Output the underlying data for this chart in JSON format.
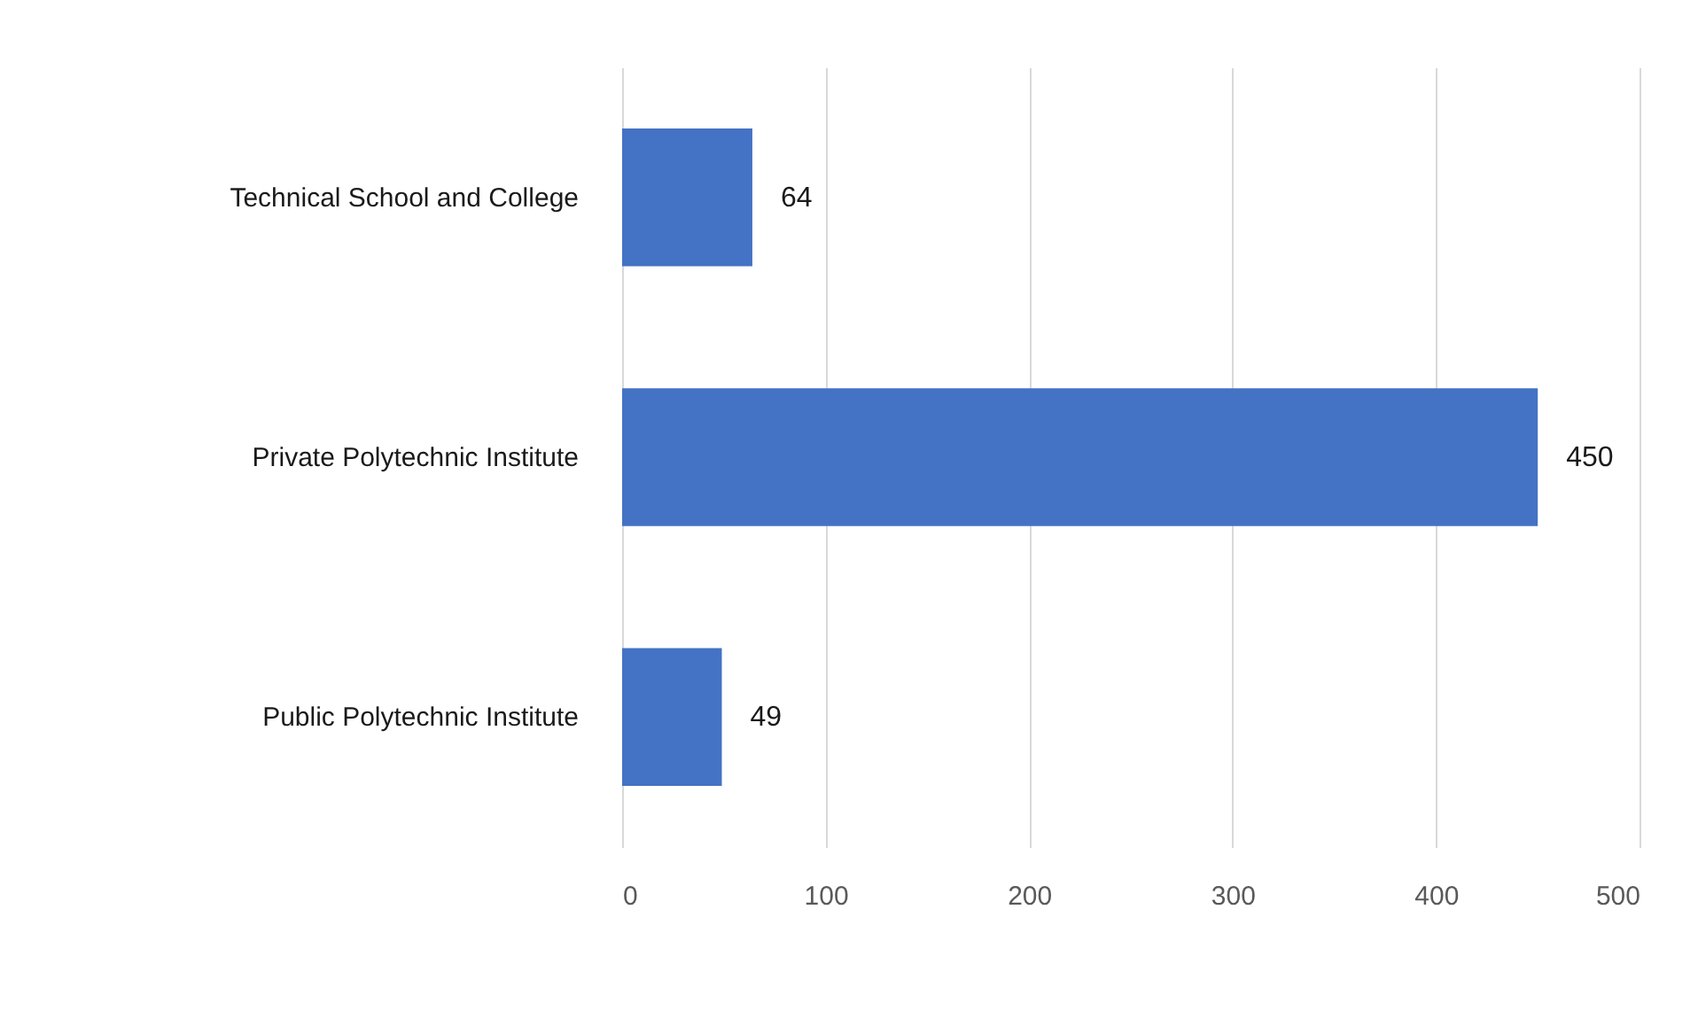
{
  "chart_data": {
    "type": "bar",
    "orientation": "horizontal",
    "categories": [
      "Technical School and College",
      "Private Polytechnic Institute",
      "Public Polytechnic Institute"
    ],
    "values": [
      64,
      450,
      49
    ],
    "color": "#4472c4",
    "xlim": [
      0,
      500
    ],
    "xticks": [
      0,
      100,
      200,
      300,
      400,
      500
    ],
    "grid": "x",
    "data_labels": true
  }
}
